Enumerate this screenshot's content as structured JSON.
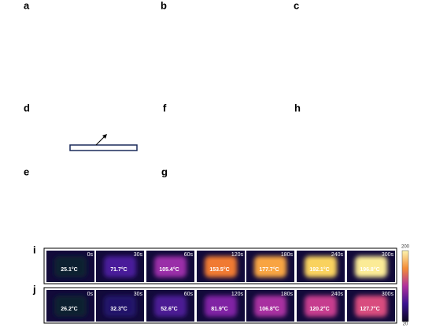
{
  "panels": [
    {
      "label": "a"
    },
    {
      "label": "b"
    },
    {
      "label": "c"
    },
    {
      "label": "d"
    },
    {
      "label": "f"
    },
    {
      "label": "h"
    },
    {
      "label": "e"
    },
    {
      "label": "g"
    }
  ],
  "rows": [
    {
      "label": "i",
      "frames": [
        {
          "time": "0s",
          "temperature": "25.1°C",
          "color": "#0d2030"
        },
        {
          "time": "30s",
          "temperature": "71.7°C",
          "color": "#4a1c9a"
        },
        {
          "time": "60s",
          "temperature": "105.4°C",
          "color": "#9a2ea8"
        },
        {
          "time": "120s",
          "temperature": "153.5°C",
          "color": "#f07a32"
        },
        {
          "time": "180s",
          "temperature": "177.7°C",
          "color": "#f8a442"
        },
        {
          "time": "240s",
          "temperature": "192.1°C",
          "color": "#f9d25e"
        },
        {
          "time": "300s",
          "temperature": "196.8°C",
          "color": "#fbeb96"
        }
      ]
    },
    {
      "label": "j",
      "frames": [
        {
          "time": "0s",
          "temperature": "26.2°C",
          "color": "#0d2030"
        },
        {
          "time": "30s",
          "temperature": "32.3°C",
          "color": "#22126a"
        },
        {
          "time": "60s",
          "temperature": "52.6°C",
          "color": "#4c1c94"
        },
        {
          "time": "120s",
          "temperature": "81.9°C",
          "color": "#8024a4"
        },
        {
          "time": "180s",
          "temperature": "106.8°C",
          "color": "#a830a0"
        },
        {
          "time": "240s",
          "temperature": "120.2°C",
          "color": "#c63c8e"
        },
        {
          "time": "300s",
          "temperature": "127.7°C",
          "color": "#d84c7e"
        }
      ]
    }
  ],
  "colorbar": {
    "max": "200",
    "min": "20"
  }
}
